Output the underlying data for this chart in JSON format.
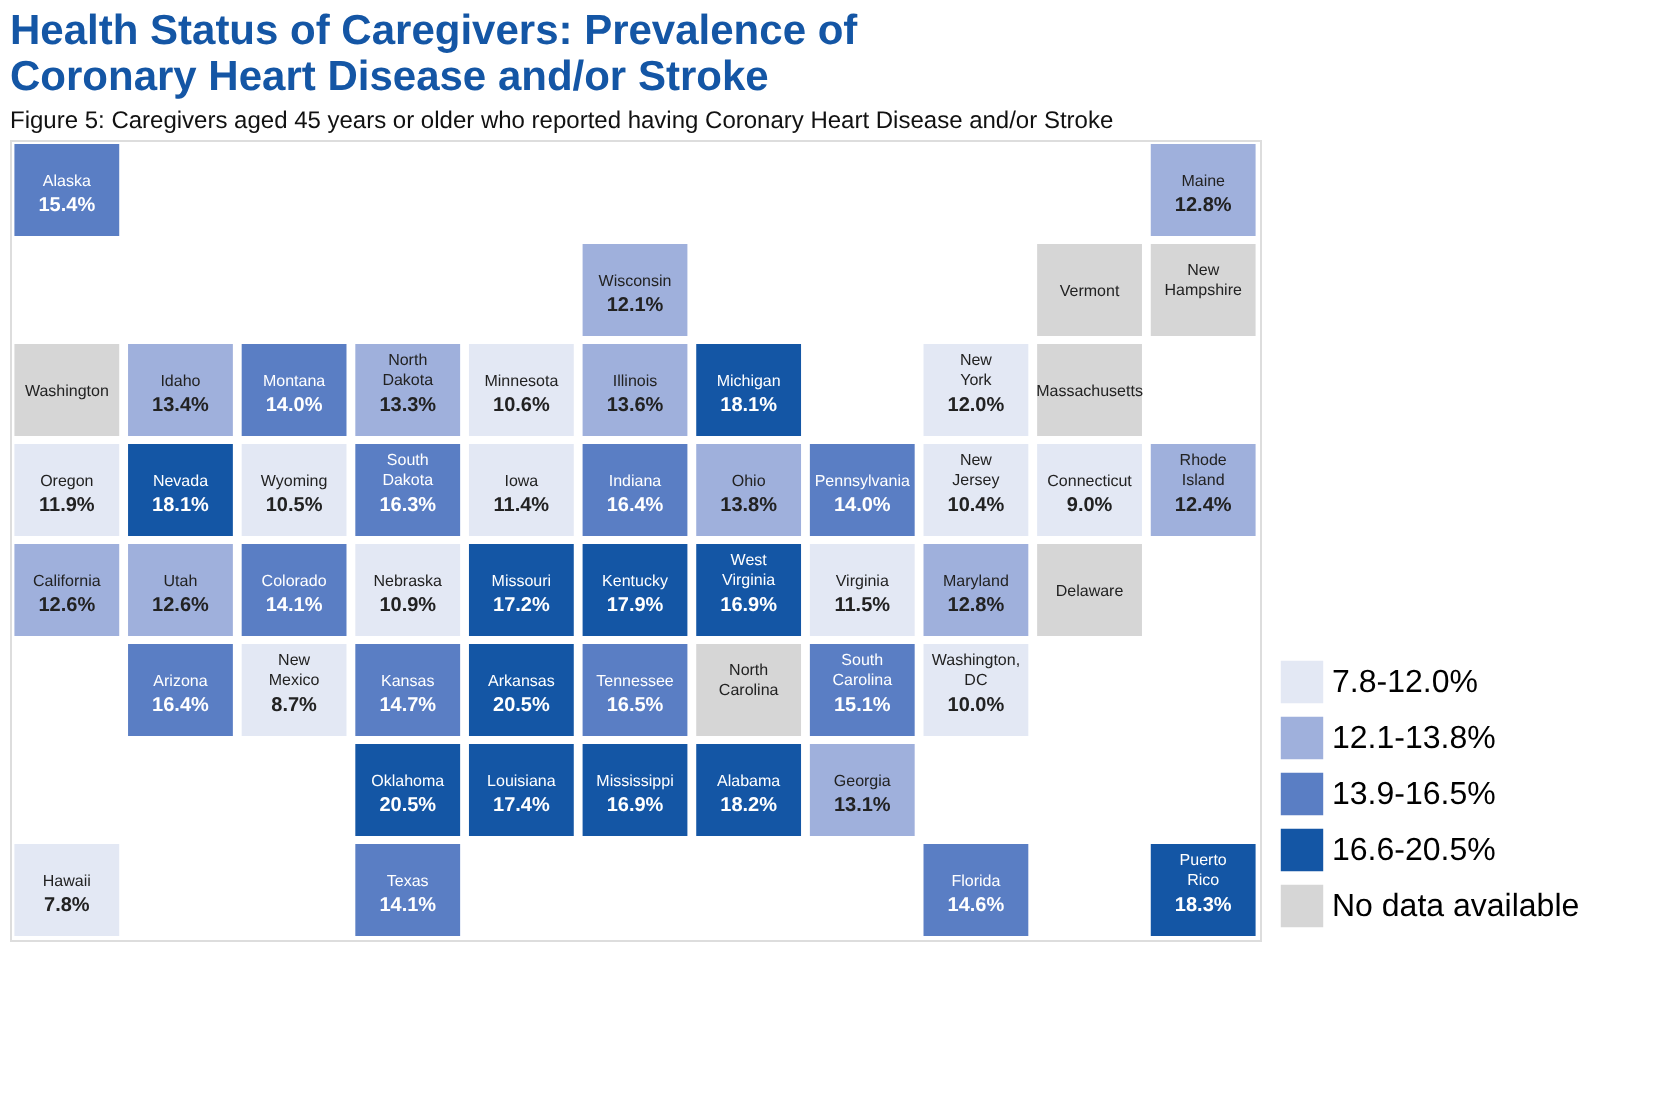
{
  "chart_data": {
    "type": "other",
    "title": "Health Status of Caregivers: Prevalence of Coronary Heart Disease and/or Stroke",
    "subtitle": "Figure 5: Caregivers aged 45 years or older who reported having Coronary Heart Disease and/or Stroke",
    "categories": [
      "Alaska",
      "Maine",
      "Wisconsin",
      "Vermont",
      "New Hampshire",
      "Washington",
      "Idaho",
      "Montana",
      "North Dakota",
      "Minnesota",
      "Illinois",
      "Michigan",
      "New York",
      "Massachusetts",
      "Oregon",
      "Nevada",
      "Wyoming",
      "South Dakota",
      "Iowa",
      "Indiana",
      "Ohio",
      "Pennsylvania",
      "New Jersey",
      "Connecticut",
      "Rhode Island",
      "California",
      "Utah",
      "Colorado",
      "Nebraska",
      "Missouri",
      "Kentucky",
      "West Virginia",
      "Virginia",
      "Maryland",
      "Delaware",
      "Arizona",
      "New Mexico",
      "Kansas",
      "Arkansas",
      "Tennessee",
      "North Carolina",
      "South Carolina",
      "Washington, DC",
      "Oklahoma",
      "Louisiana",
      "Mississippi",
      "Alabama",
      "Georgia",
      "Hawaii",
      "Texas",
      "Florida",
      "Puerto Rico"
    ],
    "series": [
      {
        "name": "7.8-12.0%",
        "color": "#e3e8f4",
        "values": [
          null,
          null,
          null,
          null,
          null,
          null,
          null,
          null,
          null,
          10.6,
          null,
          null,
          12.0,
          null,
          11.9,
          null,
          10.5,
          null,
          11.4,
          null,
          null,
          null,
          10.4,
          9.0,
          null,
          null,
          null,
          null,
          10.9,
          null,
          null,
          null,
          11.5,
          null,
          null,
          null,
          8.7,
          null,
          null,
          null,
          null,
          null,
          10.0,
          null,
          null,
          null,
          null,
          null,
          7.8,
          null,
          null,
          null
        ],
        "value_labels": [
          null,
          null,
          null,
          null,
          null,
          null,
          null,
          null,
          null,
          "10.6%",
          null,
          null,
          "12.0%",
          null,
          "11.9%",
          null,
          "10.5%",
          null,
          "11.4%",
          null,
          null,
          null,
          "10.4%",
          "9.0%",
          null,
          null,
          null,
          null,
          "10.9%",
          null,
          null,
          null,
          "11.5%",
          null,
          null,
          null,
          "8.7%",
          null,
          null,
          null,
          null,
          null,
          "10.0%",
          null,
          null,
          null,
          null,
          null,
          "7.8%",
          null,
          null,
          null
        ]
      },
      {
        "name": "12.1-13.8%",
        "color": "#9fb0dc",
        "values": [
          null,
          12.8,
          12.1,
          null,
          null,
          null,
          13.4,
          null,
          13.3,
          null,
          13.6,
          null,
          null,
          null,
          null,
          null,
          null,
          null,
          null,
          null,
          13.8,
          null,
          null,
          null,
          12.4,
          12.6,
          12.6,
          null,
          null,
          null,
          null,
          null,
          null,
          12.8,
          null,
          null,
          null,
          null,
          null,
          null,
          null,
          null,
          null,
          null,
          null,
          null,
          null,
          13.1,
          null,
          null,
          null,
          null
        ],
        "value_labels": [
          null,
          "12.8%",
          "12.1%",
          null,
          null,
          null,
          "13.4%",
          null,
          "13.3%",
          null,
          "13.6%",
          null,
          null,
          null,
          null,
          null,
          null,
          null,
          null,
          null,
          "13.8%",
          null,
          null,
          null,
          "12.4%",
          "12.6%",
          "12.6%",
          null,
          null,
          null,
          null,
          null,
          null,
          "12.8%",
          null,
          null,
          null,
          null,
          null,
          null,
          null,
          null,
          null,
          null,
          null,
          null,
          null,
          "13.1%",
          null,
          null,
          null,
          null
        ]
      },
      {
        "name": "13.9-16.5%",
        "color": "#5a7ec4",
        "values": [
          15.4,
          null,
          null,
          null,
          null,
          null,
          null,
          14.0,
          null,
          null,
          null,
          null,
          null,
          null,
          null,
          null,
          null,
          16.3,
          null,
          16.4,
          null,
          14.0,
          null,
          null,
          null,
          null,
          null,
          14.1,
          null,
          null,
          null,
          null,
          null,
          null,
          null,
          16.4,
          null,
          14.7,
          null,
          16.5,
          null,
          15.1,
          null,
          null,
          null,
          null,
          null,
          null,
          null,
          14.1,
          14.6,
          null
        ],
        "value_labels": [
          "15.4%",
          null,
          null,
          null,
          null,
          null,
          null,
          "14.0%",
          null,
          null,
          null,
          null,
          null,
          null,
          null,
          null,
          null,
          "16.3%",
          null,
          "16.4%",
          null,
          "14.0%",
          null,
          null,
          null,
          null,
          null,
          "14.1%",
          null,
          null,
          null,
          null,
          null,
          null,
          null,
          "16.4%",
          null,
          "14.7%",
          null,
          "16.5%",
          null,
          "15.1%",
          null,
          null,
          null,
          null,
          null,
          null,
          null,
          "14.1%",
          "14.6%",
          null
        ]
      },
      {
        "name": "16.6-20.5%",
        "color": "#1456a5",
        "values": [
          null,
          null,
          null,
          null,
          null,
          null,
          null,
          null,
          null,
          null,
          null,
          18.1,
          null,
          null,
          null,
          18.1,
          null,
          null,
          null,
          null,
          null,
          null,
          null,
          null,
          null,
          null,
          null,
          null,
          null,
          17.2,
          17.9,
          16.9,
          null,
          null,
          null,
          null,
          null,
          null,
          20.5,
          null,
          null,
          null,
          null,
          20.5,
          17.4,
          16.9,
          18.2,
          null,
          null,
          null,
          null,
          18.3
        ],
        "value_labels": [
          null,
          null,
          null,
          null,
          null,
          null,
          null,
          null,
          null,
          null,
          null,
          "18.1%",
          null,
          null,
          null,
          "18.1%",
          null,
          null,
          null,
          null,
          null,
          null,
          null,
          null,
          null,
          null,
          null,
          null,
          null,
          "17.2%",
          "17.9%",
          "16.9%",
          null,
          null,
          null,
          null,
          null,
          null,
          "20.5%",
          null,
          null,
          null,
          null,
          "20.5%",
          "17.4%",
          "16.9%",
          "18.2%",
          null,
          null,
          null,
          null,
          "18.3%"
        ]
      },
      {
        "name": "No data available",
        "color": "#d6d6d6",
        "values": [
          null,
          null,
          null,
          null,
          null,
          null,
          null,
          null,
          null,
          null,
          null,
          null,
          null,
          null,
          null,
          null,
          null,
          null,
          null,
          null,
          null,
          null,
          null,
          null,
          null,
          null,
          null,
          null,
          null,
          null,
          null,
          null,
          null,
          null,
          null,
          null,
          null,
          null,
          null,
          null,
          null,
          null,
          null,
          null,
          null,
          null,
          null,
          null,
          null,
          null,
          null,
          null
        ]
      }
    ],
    "legend": "bottom right"
  }
}
